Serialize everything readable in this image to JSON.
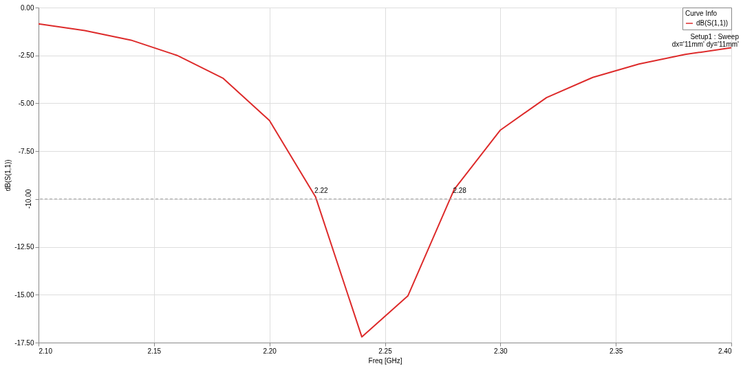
{
  "chart_data": {
    "type": "line",
    "xlabel": "Freq [GHz]",
    "ylabel": "dB(S(1,1))",
    "legend_title": "Curve Info",
    "legend": "top right",
    "grid": true,
    "line_style": "solid",
    "marker": "none",
    "x": [
      2.1,
      2.12,
      2.14,
      2.16,
      2.18,
      2.2,
      2.22,
      2.24,
      2.26,
      2.28,
      2.3,
      2.32,
      2.34,
      2.36,
      2.38,
      2.4
    ],
    "series": [
      {
        "name": "dB(S(1,1))",
        "color": "#dd2a2a",
        "values": [
          -0.85,
          -1.2,
          -1.7,
          -2.5,
          -3.7,
          -5.9,
          -9.9,
          -17.2,
          -15.05,
          -9.5,
          -6.4,
          -4.7,
          -3.65,
          -2.95,
          -2.45,
          -2.1
        ]
      }
    ],
    "xlim": [
      2.1,
      2.4
    ],
    "ylim": [
      -17.5,
      0
    ],
    "xticks": [
      {
        "value": 2.1,
        "label": "2.10"
      },
      {
        "value": 2.15,
        "label": "2.15"
      },
      {
        "value": 2.2,
        "label": "2.20"
      },
      {
        "value": 2.25,
        "label": "2.25"
      },
      {
        "value": 2.3,
        "label": "2.30"
      },
      {
        "value": 2.35,
        "label": "2.35"
      },
      {
        "value": 2.4,
        "label": "2.40"
      }
    ],
    "yticks": [
      {
        "value": 0,
        "label": "0.00"
      },
      {
        "value": -2.5,
        "label": "-2.50"
      },
      {
        "value": -5,
        "label": "-5.00"
      },
      {
        "value": -7.5,
        "label": "-7.50"
      },
      {
        "value": -10,
        "label": null
      },
      {
        "value": -12.5,
        "label": "-12.50"
      },
      {
        "value": -15,
        "label": "-15.00"
      },
      {
        "value": -17.5,
        "label": "-17.50"
      }
    ],
    "ref_lines": [
      {
        "axis": "y",
        "value": -10,
        "label": "-10.00",
        "color": "#999999",
        "line_style": "dashed"
      }
    ],
    "annotations": [
      {
        "text": "2.22",
        "x": 2.22,
        "y": -10
      },
      {
        "text": "2.28",
        "x": 2.28,
        "y": -10
      },
      "Setup1 : Sweep",
      "dx='11mm' dy='11mm'"
    ]
  }
}
